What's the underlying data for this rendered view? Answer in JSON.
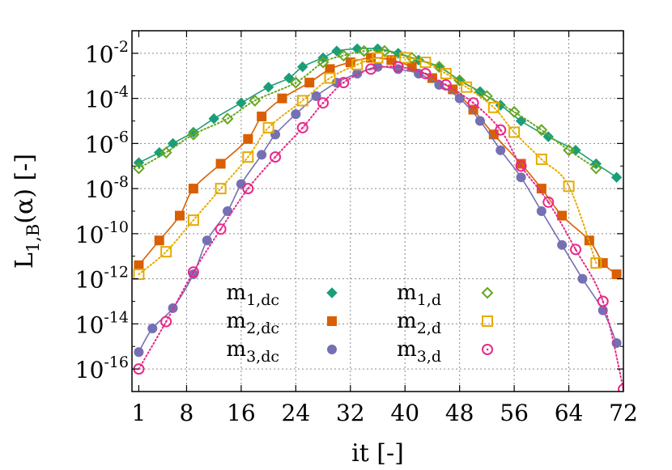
{
  "chart_data": {
    "type": "line",
    "title": "",
    "xlabel": "it [-]",
    "ylabel_main": "L",
    "ylabel_sub": "1,B",
    "ylabel_rest": "(α) [-]",
    "xlim": [
      0,
      72
    ],
    "ylim_log10": [
      -17,
      -1
    ],
    "yscale": "log",
    "grid": true,
    "legend_placement": "bottom-center",
    "x_ticks": [
      {
        "value": 1,
        "label": "1"
      },
      {
        "value": 8,
        "label": "8"
      },
      {
        "value": 16,
        "label": "16"
      },
      {
        "value": 24,
        "label": "24"
      },
      {
        "value": 32,
        "label": "32"
      },
      {
        "value": 40,
        "label": "40"
      },
      {
        "value": 48,
        "label": "48"
      },
      {
        "value": 56,
        "label": "56"
      },
      {
        "value": 64,
        "label": "64"
      },
      {
        "value": 72,
        "label": "72"
      }
    ],
    "y_ticks": [
      {
        "exp": -2,
        "base": "10",
        "sup": "-2"
      },
      {
        "exp": -4,
        "base": "10",
        "sup": "-4"
      },
      {
        "exp": -6,
        "base": "10",
        "sup": "-6"
      },
      {
        "exp": -8,
        "base": "10",
        "sup": "-8"
      },
      {
        "exp": -10,
        "base": "10",
        "sup": "-10"
      },
      {
        "exp": -12,
        "base": "10",
        "sup": "-12"
      },
      {
        "exp": -14,
        "base": "10",
        "sup": "-14"
      },
      {
        "exp": -16,
        "base": "10",
        "sup": "-16"
      }
    ],
    "series": [
      {
        "name_main": "m",
        "name_sub": "1,dc",
        "color": "#1b9e77",
        "marker": "diamond-filled",
        "line": "solid",
        "x": [
          1,
          4,
          6,
          9,
          12,
          16,
          20,
          23,
          25,
          28,
          30,
          33,
          36,
          39,
          42,
          45,
          48,
          51,
          54,
          57,
          61,
          65,
          68,
          71
        ],
        "log10y": [
          -6.85,
          -6.4,
          -6.0,
          -5.5,
          -4.9,
          -4.2,
          -3.5,
          -3.1,
          -2.6,
          -2.2,
          -1.9,
          -1.8,
          -1.8,
          -2.0,
          -2.3,
          -2.6,
          -3.2,
          -3.7,
          -4.3,
          -5.0,
          -5.7,
          -6.3,
          -6.9,
          -7.5
        ]
      },
      {
        "name_main": "m",
        "name_sub": "2,dc",
        "color": "#d95f02",
        "marker": "square-filled",
        "line": "solid",
        "x": [
          1,
          4,
          7,
          9,
          13,
          17,
          19,
          22,
          26,
          29,
          32,
          35,
          38,
          41,
          44,
          47,
          50,
          53,
          57,
          60,
          63,
          67,
          69,
          71
        ],
        "log10y": [
          -11.4,
          -10.3,
          -9.2,
          -8.0,
          -6.9,
          -5.8,
          -4.8,
          -4.0,
          -3.3,
          -2.7,
          -2.4,
          -2.2,
          -2.3,
          -2.6,
          -3.1,
          -3.6,
          -4.5,
          -5.6,
          -6.9,
          -8.0,
          -9.2,
          -10.3,
          -11.3,
          -11.8
        ]
      },
      {
        "name_main": "m",
        "name_sub": "3,dc",
        "color": "#7570b3",
        "marker": "circle-filled",
        "line": "solid",
        "x": [
          1,
          3,
          6,
          9,
          11,
          14,
          16,
          19,
          21,
          24,
          27,
          30,
          33,
          36,
          39,
          42,
          45,
          48,
          51,
          54,
          57,
          60,
          63,
          66,
          69,
          71
        ],
        "log10y": [
          -15.25,
          -14.2,
          -13.3,
          -11.8,
          -10.3,
          -9.0,
          -7.8,
          -6.5,
          -5.6,
          -4.7,
          -3.9,
          -3.3,
          -2.9,
          -2.6,
          -2.7,
          -2.9,
          -3.4,
          -4.0,
          -5.0,
          -6.3,
          -7.5,
          -9.0,
          -10.5,
          -12.0,
          -13.4,
          -14.85
        ]
      },
      {
        "name_main": "m",
        "name_sub": "1,d",
        "color": "#66a61e",
        "marker": "diamond-open",
        "line": "dotted",
        "x": [
          1,
          5,
          9,
          14,
          18,
          24,
          28,
          31,
          34,
          37,
          41,
          45,
          48,
          52,
          56,
          60,
          64,
          68
        ],
        "log10y": [
          -7.1,
          -6.4,
          -5.6,
          -4.9,
          -4.1,
          -3.3,
          -2.4,
          -2.1,
          -1.9,
          -1.9,
          -2.2,
          -2.6,
          -3.2,
          -3.9,
          -4.6,
          -5.4,
          -6.3,
          -7.1
        ]
      },
      {
        "name_main": "m",
        "name_sub": "2,d",
        "color": "#e6ab02",
        "marker": "square-open",
        "line": "dotted",
        "x": [
          1,
          5,
          9,
          13,
          17,
          20,
          25,
          29,
          33,
          36,
          40,
          43,
          46,
          49,
          53,
          56,
          60,
          64,
          68
        ],
        "log10y": [
          -11.8,
          -10.8,
          -9.4,
          -8.0,
          -6.6,
          -5.3,
          -4.1,
          -3.1,
          -2.5,
          -2.2,
          -2.2,
          -2.4,
          -2.9,
          -3.5,
          -4.4,
          -5.5,
          -6.7,
          -7.9,
          -11.3
        ]
      },
      {
        "name_main": "m",
        "name_sub": "3,d",
        "color": "#e7298a",
        "marker": "circle-open",
        "line": "dotted",
        "x": [
          1,
          5,
          9,
          13,
          17,
          21,
          25,
          28,
          31,
          35,
          39,
          43,
          46,
          50,
          54,
          57,
          61,
          65,
          69,
          72
        ],
        "log10y": [
          -16.0,
          -13.9,
          -11.7,
          -9.8,
          -8.0,
          -6.6,
          -5.3,
          -4.2,
          -3.3,
          -2.7,
          -2.6,
          -2.9,
          -3.4,
          -4.2,
          -5.4,
          -7.0,
          -8.6,
          -10.7,
          -13.0,
          -16.9
        ]
      }
    ]
  }
}
